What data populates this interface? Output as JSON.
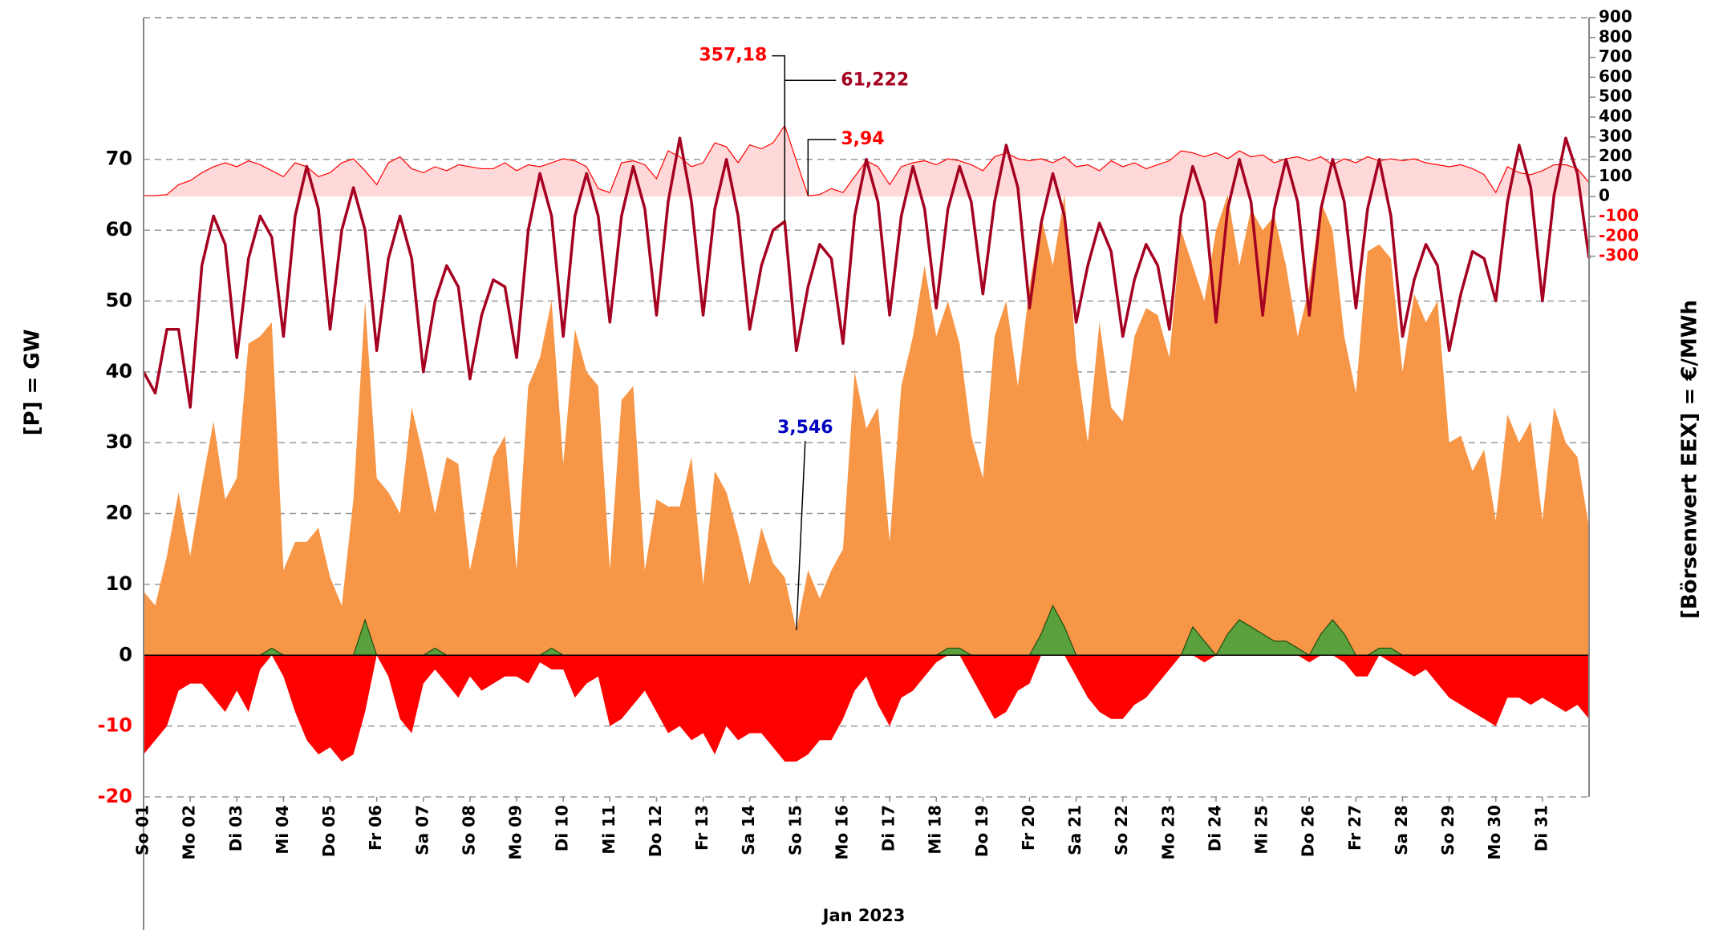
{
  "chart_data": {
    "type": "area",
    "xlabel": "Jan 2023",
    "ylabel": "[P]  =  GW",
    "y2label": "[Börsenwert  EEX]   =  €/MWh",
    "xlim": [
      1,
      32
    ],
    "xticks": [
      {
        "value": 1,
        "label": "So 01"
      },
      {
        "value": 2,
        "label": "Mo 02"
      },
      {
        "value": 3,
        "label": "Di 03"
      },
      {
        "value": 4,
        "label": "Mi 04"
      },
      {
        "value": 5,
        "label": "Do 05"
      },
      {
        "value": 6,
        "label": "Fr 06"
      },
      {
        "value": 7,
        "label": "Sa 07"
      },
      {
        "value": 8,
        "label": "So 08"
      },
      {
        "value": 9,
        "label": "Mo 09"
      },
      {
        "value": 10,
        "label": "Di 10"
      },
      {
        "value": 11,
        "label": "Mi 11"
      },
      {
        "value": 12,
        "label": "Do 12"
      },
      {
        "value": 13,
        "label": "Fr 13"
      },
      {
        "value": 14,
        "label": "Sa 14"
      },
      {
        "value": 15,
        "label": "So 15"
      },
      {
        "value": 16,
        "label": "Mo 16"
      },
      {
        "value": 17,
        "label": "Di 17"
      },
      {
        "value": 18,
        "label": "Mi 18"
      },
      {
        "value": 19,
        "label": "Do 19"
      },
      {
        "value": 20,
        "label": "Fr 20"
      },
      {
        "value": 21,
        "label": "Sa 21"
      },
      {
        "value": 22,
        "label": "So 22"
      },
      {
        "value": 23,
        "label": "Mo 23"
      },
      {
        "value": 24,
        "label": "Di 24"
      },
      {
        "value": 25,
        "label": "Mi 25"
      },
      {
        "value": 26,
        "label": "Do 26"
      },
      {
        "value": 27,
        "label": "Fr 27"
      },
      {
        "value": 28,
        "label": "Sa 28"
      },
      {
        "value": 29,
        "label": "So 29"
      },
      {
        "value": 30,
        "label": "Mo 30"
      },
      {
        "value": 31,
        "label": "Di 31"
      }
    ],
    "ylim": [
      -20,
      90
    ],
    "yticks": [
      -20,
      -10,
      0,
      10,
      20,
      30,
      40,
      50,
      60,
      70
    ],
    "y2lim": [
      -3020,
      900
    ],
    "y2ticks": [
      -300,
      -200,
      -100,
      0,
      100,
      200,
      300,
      400,
      500,
      600,
      700,
      800,
      900
    ],
    "grid": true,
    "x": [
      1,
      1.25,
      1.5,
      1.75,
      2,
      2.25,
      2.5,
      2.75,
      3,
      3.25,
      3.5,
      3.75,
      4,
      4.25,
      4.5,
      4.75,
      5,
      5.25,
      5.5,
      5.75,
      6,
      6.25,
      6.5,
      6.75,
      7,
      7.25,
      7.5,
      7.75,
      8,
      8.25,
      8.5,
      8.75,
      9,
      9.25,
      9.5,
      9.75,
      10,
      10.25,
      10.5,
      10.75,
      11,
      11.25,
      11.5,
      11.75,
      12,
      12.25,
      12.5,
      12.75,
      13,
      13.25,
      13.5,
      13.75,
      14,
      14.25,
      14.5,
      14.75,
      15,
      15.25,
      15.5,
      15.75,
      16,
      16.25,
      16.5,
      16.75,
      17,
      17.25,
      17.5,
      17.75,
      18,
      18.25,
      18.5,
      18.75,
      19,
      19.25,
      19.5,
      19.75,
      20,
      20.25,
      20.5,
      20.75,
      21,
      21.25,
      21.5,
      21.75,
      22,
      22.25,
      22.5,
      22.75,
      23,
      23.25,
      23.5,
      23.75,
      24,
      24.25,
      24.5,
      24.75,
      25,
      25.25,
      25.5,
      25.75,
      26,
      26.25,
      26.5,
      26.75,
      27,
      27.25,
      27.5,
      27.75,
      28,
      28.25,
      28.5,
      28.75,
      29,
      29.25,
      29.5,
      29.75,
      30,
      30.25,
      30.5,
      30.75,
      31,
      31.25,
      31.5,
      31.75,
      32
    ],
    "series": [
      {
        "kind": "area",
        "axis": "y2",
        "color": "#ffd9d9",
        "line_color": "#ff0000",
        "values": [
          5,
          5,
          10,
          60,
          80,
          120,
          150,
          170,
          150,
          180,
          160,
          130,
          100,
          170,
          150,
          100,
          120,
          170,
          190,
          130,
          60,
          170,
          200,
          140,
          120,
          150,
          130,
          160,
          150,
          140,
          140,
          170,
          130,
          160,
          150,
          170,
          190,
          180,
          150,
          40,
          20,
          170,
          180,
          160,
          90,
          230,
          200,
          150,
          170,
          270,
          250,
          170,
          260,
          240,
          270,
          357.18,
          180,
          3.94,
          10,
          40,
          20,
          100,
          180,
          150,
          60,
          150,
          170,
          180,
          160,
          190,
          180,
          160,
          130,
          200,
          220,
          190,
          180,
          190,
          170,
          200,
          150,
          160,
          130,
          180,
          150,
          170,
          140,
          160,
          180,
          230,
          220,
          200,
          220,
          190,
          230,
          200,
          210,
          170,
          190,
          200,
          180,
          200,
          160,
          190,
          170,
          200,
          180,
          190,
          180,
          190,
          170,
          160,
          150,
          160,
          140,
          110,
          20,
          150,
          120,
          110,
          130,
          160,
          160,
          140,
          70
        ]
      },
      {
        "kind": "area",
        "color": "#f79646",
        "values": [
          9,
          7,
          14,
          23,
          14,
          24,
          33,
          22,
          25,
          44,
          45,
          47,
          12,
          16,
          16,
          18,
          11,
          7,
          22,
          50,
          25,
          23,
          20,
          35,
          28,
          20,
          28,
          27,
          12,
          20,
          28,
          31,
          12,
          38,
          42,
          50,
          27,
          46,
          40,
          38,
          12,
          36,
          38,
          12,
          22,
          21,
          21,
          28,
          10,
          26,
          23,
          17,
          10,
          18,
          13,
          11,
          3.546,
          12,
          8,
          12,
          15,
          40,
          32,
          35,
          16,
          38,
          45,
          55,
          45,
          50,
          44,
          31,
          25,
          45,
          50,
          38,
          52,
          62,
          55,
          65,
          42,
          30,
          47,
          35,
          33,
          45,
          49,
          48,
          42,
          60,
          55,
          50,
          60,
          65,
          55,
          63,
          60,
          62,
          55,
          45,
          52,
          64,
          60,
          45,
          37,
          57,
          58,
          56,
          40,
          51,
          47,
          50,
          30,
          31,
          26,
          29,
          19,
          34,
          30,
          33,
          19,
          35,
          30,
          28,
          18
        ]
      },
      {
        "kind": "area",
        "color": "#ff0000",
        "values": [
          -14,
          -12,
          -10,
          -5,
          -4,
          -4,
          -6,
          -8,
          -5,
          -8,
          -2,
          0,
          -3,
          -8,
          -12,
          -14,
          -13,
          -15,
          -14,
          -8,
          0,
          -3,
          -9,
          -11,
          -4,
          -2,
          -4,
          -6,
          -3,
          -5,
          -4,
          -3,
          -3,
          -4,
          -1,
          -2,
          -2,
          -6,
          -4,
          -3,
          -10,
          -9,
          -7,
          -5,
          -8,
          -11,
          -10,
          -12,
          -11,
          -14,
          -10,
          -12,
          -11,
          -11,
          -13,
          -15,
          -15,
          -14,
          -12,
          -12,
          -9,
          -5,
          -3,
          -7,
          -10,
          -6,
          -5,
          -3,
          -1,
          0,
          0,
          -3,
          -6,
          -9,
          -8,
          -5,
          -4,
          0,
          0,
          0,
          -3,
          -6,
          -8,
          -9,
          -9,
          -7,
          -6,
          -4,
          -2,
          0,
          0,
          -1,
          0,
          0,
          0,
          0,
          0,
          0,
          0,
          0,
          -1,
          0,
          0,
          -1,
          -3,
          -3,
          0,
          -1,
          -2,
          -3,
          -2,
          -4,
          -6,
          -7,
          -8,
          -9,
          -10,
          -6,
          -6,
          -7,
          -6,
          -7,
          -8,
          -7,
          -9
        ]
      },
      {
        "kind": "area",
        "color": "#5aa03c",
        "line_color": "#1f4d12",
        "values": [
          0,
          0,
          0,
          0,
          0,
          0,
          0,
          0,
          0,
          0,
          0,
          1,
          0,
          0,
          0,
          0,
          0,
          0,
          0,
          5,
          0,
          0,
          0,
          0,
          0,
          1,
          0,
          0,
          0,
          0,
          0,
          0,
          0,
          0,
          0,
          1,
          0,
          0,
          0,
          0,
          0,
          0,
          0,
          0,
          0,
          0,
          0,
          0,
          0,
          0,
          0,
          0,
          0,
          0,
          0,
          0,
          0,
          0,
          0,
          0,
          0,
          0,
          0,
          0,
          0,
          0,
          0,
          0,
          0,
          1,
          1,
          0,
          0,
          0,
          0,
          0,
          0,
          3,
          7,
          4,
          0,
          0,
          0,
          0,
          0,
          0,
          0,
          0,
          0,
          0,
          4,
          2,
          0,
          3,
          5,
          4,
          3,
          2,
          2,
          1,
          0,
          3,
          5,
          3,
          0,
          0,
          1,
          1,
          0,
          0,
          0,
          0,
          0,
          0,
          0,
          0,
          0,
          0,
          0,
          0,
          0,
          0,
          0,
          0,
          0
        ]
      },
      {
        "kind": "line",
        "color": "#a50021",
        "values": [
          40,
          37,
          46,
          46,
          35,
          55,
          62,
          58,
          42,
          56,
          62,
          59,
          45,
          62,
          69,
          63,
          46,
          60,
          66,
          60,
          43,
          56,
          62,
          56,
          40,
          50,
          55,
          52,
          39,
          48,
          53,
          52,
          42,
          60,
          68,
          62,
          45,
          62,
          68,
          62,
          47,
          62,
          69,
          63,
          48,
          64,
          73,
          64,
          48,
          63,
          70,
          62,
          46,
          55,
          60,
          61.222,
          43,
          52,
          58,
          56,
          44,
          62,
          70,
          64,
          48,
          62,
          69,
          63,
          49,
          63,
          69,
          64,
          51,
          64,
          72,
          66,
          49,
          61,
          68,
          62,
          47,
          55,
          61,
          57,
          45,
          53,
          58,
          55,
          46,
          62,
          69,
          64,
          47,
          63,
          70,
          64,
          48,
          63,
          70,
          64,
          48,
          63,
          70,
          64,
          49,
          63,
          70,
          62,
          45,
          53,
          58,
          55,
          43,
          51,
          57,
          56,
          50,
          64,
          72,
          66,
          50,
          65,
          73,
          68,
          56
        ]
      }
    ],
    "annotations": [
      {
        "text": "357,18",
        "x": 14.75,
        "y": 357.18,
        "axis": "y2",
        "color": "#ff0000"
      },
      {
        "text": "61,222",
        "x": 14.75,
        "y": 61.222,
        "color": "#a50021"
      },
      {
        "text": "3,94",
        "x": 15.25,
        "y": 3.94,
        "axis": "y2",
        "color": "#ff0000"
      },
      {
        "text": "3,546",
        "x": 15,
        "y": 3.546,
        "color": "#0000c0"
      }
    ]
  }
}
